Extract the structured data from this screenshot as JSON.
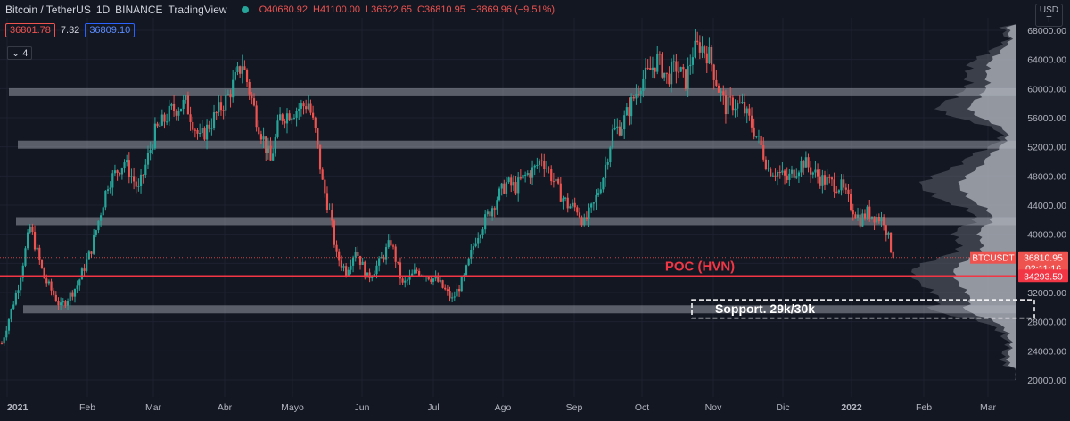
{
  "header": {
    "symbol": "Bitcoin / TetherUS",
    "interval": "1D",
    "exchange": "BINANCE",
    "platform": "TradingView",
    "open": "O40680.92",
    "high": "H41100.00",
    "low": "L36622.65",
    "close": "C36810.95",
    "change": "−3869.96 (−9.51%)",
    "bid": "36801.78",
    "spread": "7.32",
    "ask": "36809.10",
    "indicator_count": "4",
    "currency": "USD\nT",
    "currency_top": "USD",
    "currency_bottom": "T"
  },
  "chart_data": {
    "type": "candlestick",
    "x_tick_labels": [
      "2021",
      "Feb",
      "Mar",
      "Abr",
      "Mayo",
      "Jun",
      "Jul",
      "Ago",
      "Sep",
      "Oct",
      "Nov",
      "Dic",
      "2022",
      "Feb",
      "Mar"
    ],
    "y_tick_labels": [
      "20000.00",
      "24000.00",
      "28000.00",
      "32000.00",
      "36000.00",
      "40000.00",
      "44000.00",
      "48000.00",
      "52000.00",
      "56000.00",
      "60000.00",
      "64000.00",
      "68000.00"
    ],
    "ylim": [
      18000,
      70000
    ],
    "price_path": [
      [
        0,
        25000
      ],
      [
        7,
        33000
      ],
      [
        12,
        41000
      ],
      [
        18,
        34000
      ],
      [
        25,
        30000
      ],
      [
        32,
        33000
      ],
      [
        38,
        38000
      ],
      [
        45,
        47000
      ],
      [
        52,
        50000
      ],
      [
        58,
        46000
      ],
      [
        65,
        54000
      ],
      [
        72,
        57000
      ],
      [
        78,
        58000
      ],
      [
        84,
        53000
      ],
      [
        90,
        56000
      ],
      [
        96,
        59000
      ],
      [
        102,
        63500
      ],
      [
        108,
        56000
      ],
      [
        114,
        50000
      ],
      [
        118,
        56000
      ],
      [
        124,
        57000
      ],
      [
        130,
        58000
      ],
      [
        133,
        54000
      ],
      [
        136,
        47000
      ],
      [
        139,
        43000
      ],
      [
        142,
        37000
      ],
      [
        146,
        35000
      ],
      [
        150,
        38000
      ],
      [
        155,
        34000
      ],
      [
        160,
        36000
      ],
      [
        165,
        39000
      ],
      [
        170,
        33000
      ],
      [
        176,
        35000
      ],
      [
        180,
        34500
      ],
      [
        185,
        33500
      ],
      [
        191,
        31000
      ],
      [
        196,
        34000
      ],
      [
        201,
        39500
      ],
      [
        205,
        42000
      ],
      [
        210,
        45000
      ],
      [
        214,
        47000
      ],
      [
        218,
        46500
      ],
      [
        222,
        48000
      ],
      [
        226,
        49000
      ],
      [
        229,
        50500
      ],
      [
        233,
        48000
      ],
      [
        236,
        46000
      ],
      [
        240,
        44000
      ],
      [
        244,
        43500
      ],
      [
        247,
        41500
      ],
      [
        251,
        44000
      ],
      [
        255,
        48000
      ],
      [
        259,
        54000
      ],
      [
        263,
        55000
      ],
      [
        267,
        58000
      ],
      [
        271,
        61000
      ],
      [
        274,
        62000
      ],
      [
        278,
        64000
      ],
      [
        282,
        61500
      ],
      [
        286,
        63000
      ],
      [
        290,
        61000
      ],
      [
        293,
        65000
      ],
      [
        296,
        66000
      ],
      [
        300,
        64500
      ],
      [
        304,
        60000
      ],
      [
        307,
        57500
      ],
      [
        310,
        58000
      ],
      [
        314,
        57500
      ],
      [
        318,
        55000
      ],
      [
        322,
        52000
      ],
      [
        325,
        49000
      ],
      [
        329,
        48500
      ],
      [
        333,
        47500
      ],
      [
        337,
        49000
      ],
      [
        340,
        50000
      ],
      [
        344,
        48500
      ],
      [
        348,
        47500
      ],
      [
        352,
        47000
      ],
      [
        356,
        46500
      ],
      [
        360,
        44000
      ],
      [
        364,
        42000
      ],
      [
        367,
        43000
      ],
      [
        370,
        42500
      ],
      [
        374,
        42000
      ],
      [
        378,
        36810
      ]
    ],
    "last_price": "36810.95",
    "last_price_symbol": "BTCUSDT",
    "countdown": "02:11:16",
    "poc_price": "34293.59",
    "poc": 34293.59,
    "zones": [
      59500,
      52300,
      41800,
      29700
    ],
    "labels": {
      "poc_label": "POC (HVN)",
      "support_label": "Sopport. 29k/30k"
    },
    "support_box": [
      28500,
      31000
    ],
    "colors": {
      "up": "#26a69a",
      "down": "#ef5350",
      "poc": "#f23645",
      "zone": "#b2b5be",
      "bg": "#131722"
    }
  }
}
